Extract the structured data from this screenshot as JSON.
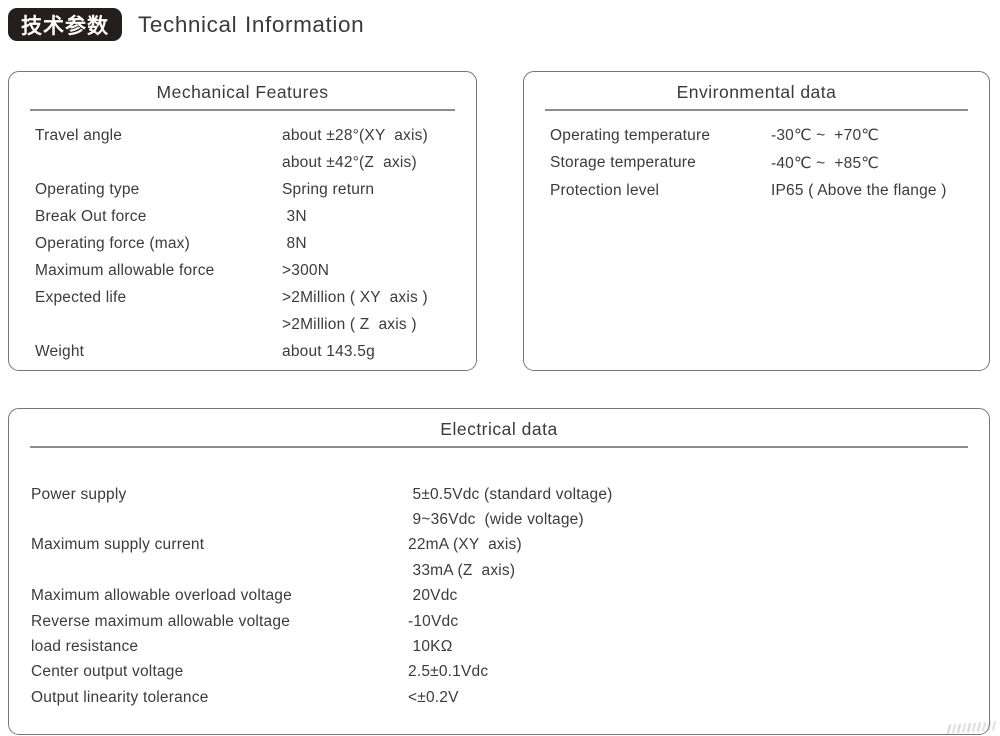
{
  "header": {
    "badge": "技术参数",
    "title": "Technical Information"
  },
  "panels": {
    "mechanical": {
      "title": "Mechanical Features",
      "rows": [
        {
          "label": "Travel angle",
          "value": "about ±28°(XY  axis)"
        },
        {
          "label": "",
          "value": "about ±42°(Z  axis)"
        },
        {
          "label": "Operating type",
          "value": "Spring return"
        },
        {
          "label": "Break Out force",
          "value": " 3N"
        },
        {
          "label": "Operating force (max)",
          "value": " 8N"
        },
        {
          "label": "Maximum allowable force",
          "value": ">300N"
        },
        {
          "label": "Expected life",
          "value": ">2Million ( XY  axis )"
        },
        {
          "label": "",
          "value": ">2Million ( Z  axis )"
        },
        {
          "label": "Weight",
          "value": "about 143.5g"
        }
      ]
    },
    "environmental": {
      "title": "Environmental data",
      "rows": [
        {
          "label": "Operating temperature",
          "value": "-30℃ ~  +70℃"
        },
        {
          "label": "Storage temperature",
          "value": "-40℃ ~  +85℃"
        },
        {
          "label": "Protection level",
          "value": "IP65 ( Above the flange )"
        }
      ]
    },
    "electrical": {
      "title": "Electrical data",
      "rows": [
        {
          "label": "Power supply",
          "value": " 5±0.5Vdc (standard voltage)"
        },
        {
          "label": "",
          "value": " 9~36Vdc  (wide voltage)"
        },
        {
          "label": "Maximum supply current",
          "value": "22mA (XY  axis)"
        },
        {
          "label": "",
          "value": " 33mA (Z  axis)"
        },
        {
          "label": "Maximum allowable overload voltage",
          "value": " 20Vdc"
        },
        {
          "label": "Reverse maximum allowable voltage",
          "value": "-10Vdc"
        },
        {
          "label": "load resistance",
          "value": " 10KΩ"
        },
        {
          "label": "Center output voltage",
          "value": "2.5±0.1Vdc"
        },
        {
          "label": "Output linearity tolerance",
          "value": "<±0.2V"
        }
      ]
    }
  },
  "colors": {
    "badge_background": "#241f1c",
    "text": "#3b3b3b",
    "panel_border": "#777777",
    "title_rule": "#8c8c8c"
  }
}
